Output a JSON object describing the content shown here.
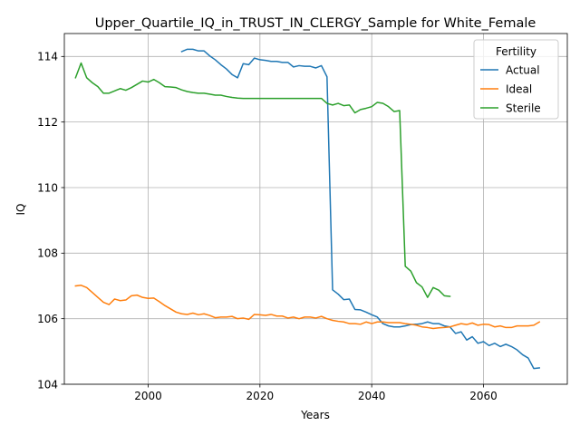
{
  "chart_data": {
    "type": "line",
    "title": "Upper_Quartile_IQ_in_TRUST_IN_CLERGY_Sample for White_Female",
    "xlabel": "Years",
    "ylabel": "IQ",
    "xlim": [
      1985,
      2075
    ],
    "ylim": [
      104,
      114.7
    ],
    "x_ticks": [
      2000,
      2020,
      2040,
      2060
    ],
    "y_ticks": [
      104,
      106,
      108,
      110,
      112,
      114
    ],
    "grid": true,
    "legend": {
      "title": "Fertility",
      "placement": "top-right"
    },
    "series": [
      {
        "name": "Actual",
        "color": "#1f77b4",
        "points": [
          [
            2006,
            114.15
          ],
          [
            2007,
            114.22
          ],
          [
            2008,
            114.22
          ],
          [
            2009,
            114.17
          ],
          [
            2010,
            114.17
          ],
          [
            2011,
            114.02
          ],
          [
            2012,
            113.9
          ],
          [
            2013,
            113.75
          ],
          [
            2014,
            113.62
          ],
          [
            2015,
            113.45
          ],
          [
            2016,
            113.35
          ],
          [
            2017,
            113.78
          ],
          [
            2018,
            113.75
          ],
          [
            2019,
            113.95
          ],
          [
            2020,
            113.9
          ],
          [
            2021,
            113.88
          ],
          [
            2022,
            113.85
          ],
          [
            2023,
            113.85
          ],
          [
            2024,
            113.82
          ],
          [
            2025,
            113.82
          ],
          [
            2026,
            113.68
          ],
          [
            2027,
            113.72
          ],
          [
            2028,
            113.7
          ],
          [
            2029,
            113.7
          ],
          [
            2030,
            113.65
          ],
          [
            2031,
            113.72
          ],
          [
            2032,
            113.38
          ],
          [
            2033,
            106.88
          ],
          [
            2034,
            106.75
          ],
          [
            2035,
            106.58
          ],
          [
            2036,
            106.6
          ],
          [
            2037,
            106.28
          ],
          [
            2038,
            106.27
          ],
          [
            2039,
            106.2
          ],
          [
            2040,
            106.12
          ],
          [
            2041,
            106.05
          ],
          [
            2042,
            105.85
          ],
          [
            2043,
            105.78
          ],
          [
            2044,
            105.75
          ],
          [
            2045,
            105.75
          ],
          [
            2046,
            105.78
          ],
          [
            2047,
            105.82
          ],
          [
            2048,
            105.83
          ],
          [
            2049,
            105.85
          ],
          [
            2050,
            105.9
          ],
          [
            2051,
            105.85
          ],
          [
            2052,
            105.85
          ],
          [
            2053,
            105.78
          ],
          [
            2054,
            105.75
          ],
          [
            2055,
            105.55
          ],
          [
            2056,
            105.6
          ],
          [
            2057,
            105.35
          ],
          [
            2058,
            105.45
          ],
          [
            2059,
            105.25
          ],
          [
            2060,
            105.3
          ],
          [
            2061,
            105.18
          ],
          [
            2062,
            105.25
          ],
          [
            2063,
            105.15
          ],
          [
            2064,
            105.22
          ],
          [
            2065,
            105.15
          ],
          [
            2066,
            105.05
          ],
          [
            2067,
            104.9
          ],
          [
            2068,
            104.8
          ],
          [
            2069,
            104.48
          ],
          [
            2070,
            104.5
          ]
        ]
      },
      {
        "name": "Ideal",
        "color": "#ff7f0e",
        "points": [
          [
            1987,
            107.0
          ],
          [
            1988,
            107.02
          ],
          [
            1989,
            106.95
          ],
          [
            1990,
            106.8
          ],
          [
            1991,
            106.65
          ],
          [
            1992,
            106.5
          ],
          [
            1993,
            106.43
          ],
          [
            1994,
            106.6
          ],
          [
            1995,
            106.55
          ],
          [
            1996,
            106.57
          ],
          [
            1997,
            106.7
          ],
          [
            1998,
            106.72
          ],
          [
            1999,
            106.65
          ],
          [
            2000,
            106.62
          ],
          [
            2001,
            106.63
          ],
          [
            2002,
            106.52
          ],
          [
            2003,
            106.4
          ],
          [
            2004,
            106.3
          ],
          [
            2005,
            106.2
          ],
          [
            2006,
            106.15
          ],
          [
            2007,
            106.13
          ],
          [
            2008,
            106.17
          ],
          [
            2009,
            106.12
          ],
          [
            2010,
            106.15
          ],
          [
            2011,
            106.1
          ],
          [
            2012,
            106.03
          ],
          [
            2013,
            106.05
          ],
          [
            2014,
            106.05
          ],
          [
            2015,
            106.07
          ],
          [
            2016,
            106.0
          ],
          [
            2017,
            106.02
          ],
          [
            2018,
            105.98
          ],
          [
            2019,
            106.13
          ],
          [
            2020,
            106.12
          ],
          [
            2021,
            106.1
          ],
          [
            2022,
            106.13
          ],
          [
            2023,
            106.08
          ],
          [
            2024,
            106.08
          ],
          [
            2025,
            106.02
          ],
          [
            2026,
            106.05
          ],
          [
            2027,
            106.0
          ],
          [
            2028,
            106.05
          ],
          [
            2029,
            106.05
          ],
          [
            2030,
            106.02
          ],
          [
            2031,
            106.07
          ],
          [
            2032,
            106.0
          ],
          [
            2033,
            105.95
          ],
          [
            2034,
            105.92
          ],
          [
            2035,
            105.9
          ],
          [
            2036,
            105.85
          ],
          [
            2037,
            105.85
          ],
          [
            2038,
            105.83
          ],
          [
            2039,
            105.9
          ],
          [
            2040,
            105.85
          ],
          [
            2041,
            105.9
          ],
          [
            2042,
            105.9
          ],
          [
            2043,
            105.88
          ],
          [
            2044,
            105.88
          ],
          [
            2045,
            105.88
          ],
          [
            2046,
            105.85
          ],
          [
            2047,
            105.83
          ],
          [
            2048,
            105.8
          ],
          [
            2049,
            105.75
          ],
          [
            2050,
            105.73
          ],
          [
            2051,
            105.7
          ],
          [
            2052,
            105.72
          ],
          [
            2053,
            105.73
          ],
          [
            2054,
            105.75
          ],
          [
            2055,
            105.8
          ],
          [
            2056,
            105.85
          ],
          [
            2057,
            105.82
          ],
          [
            2058,
            105.87
          ],
          [
            2059,
            105.8
          ],
          [
            2060,
            105.83
          ],
          [
            2061,
            105.82
          ],
          [
            2062,
            105.75
          ],
          [
            2063,
            105.78
          ],
          [
            2064,
            105.73
          ],
          [
            2065,
            105.73
          ],
          [
            2066,
            105.78
          ],
          [
            2067,
            105.78
          ],
          [
            2068,
            105.78
          ],
          [
            2069,
            105.8
          ],
          [
            2070,
            105.9
          ]
        ]
      },
      {
        "name": "Sterile",
        "color": "#2ca02c",
        "points": [
          [
            1987,
            113.35
          ],
          [
            1988,
            113.8
          ],
          [
            1989,
            113.35
          ],
          [
            1990,
            113.2
          ],
          [
            1991,
            113.08
          ],
          [
            1992,
            112.88
          ],
          [
            1993,
            112.88
          ],
          [
            1994,
            112.95
          ],
          [
            1995,
            113.02
          ],
          [
            1996,
            112.97
          ],
          [
            1997,
            113.05
          ],
          [
            1998,
            113.15
          ],
          [
            1999,
            113.25
          ],
          [
            2000,
            113.22
          ],
          [
            2001,
            113.3
          ],
          [
            2002,
            113.2
          ],
          [
            2003,
            113.08
          ],
          [
            2004,
            113.07
          ],
          [
            2005,
            113.05
          ],
          [
            2006,
            112.98
          ],
          [
            2007,
            112.93
          ],
          [
            2008,
            112.9
          ],
          [
            2009,
            112.88
          ],
          [
            2010,
            112.88
          ],
          [
            2011,
            112.85
          ],
          [
            2012,
            112.82
          ],
          [
            2013,
            112.82
          ],
          [
            2014,
            112.78
          ],
          [
            2015,
            112.75
          ],
          [
            2016,
            112.73
          ],
          [
            2017,
            112.72
          ],
          [
            2018,
            112.72
          ],
          [
            2019,
            112.72
          ],
          [
            2020,
            112.72
          ],
          [
            2021,
            112.72
          ],
          [
            2022,
            112.72
          ],
          [
            2023,
            112.72
          ],
          [
            2024,
            112.72
          ],
          [
            2025,
            112.72
          ],
          [
            2026,
            112.72
          ],
          [
            2027,
            112.72
          ],
          [
            2028,
            112.72
          ],
          [
            2029,
            112.72
          ],
          [
            2030,
            112.72
          ],
          [
            2031,
            112.72
          ],
          [
            2032,
            112.57
          ],
          [
            2033,
            112.52
          ],
          [
            2034,
            112.57
          ],
          [
            2035,
            112.5
          ],
          [
            2036,
            112.52
          ],
          [
            2037,
            112.28
          ],
          [
            2038,
            112.38
          ],
          [
            2039,
            112.42
          ],
          [
            2040,
            112.47
          ],
          [
            2041,
            112.6
          ],
          [
            2042,
            112.57
          ],
          [
            2043,
            112.47
          ],
          [
            2044,
            112.32
          ],
          [
            2045,
            112.35
          ],
          [
            2046,
            107.6
          ],
          [
            2047,
            107.45
          ],
          [
            2048,
            107.1
          ],
          [
            2049,
            106.97
          ],
          [
            2050,
            106.65
          ],
          [
            2051,
            106.95
          ],
          [
            2052,
            106.87
          ],
          [
            2053,
            106.7
          ],
          [
            2054,
            106.68
          ]
        ]
      }
    ]
  }
}
